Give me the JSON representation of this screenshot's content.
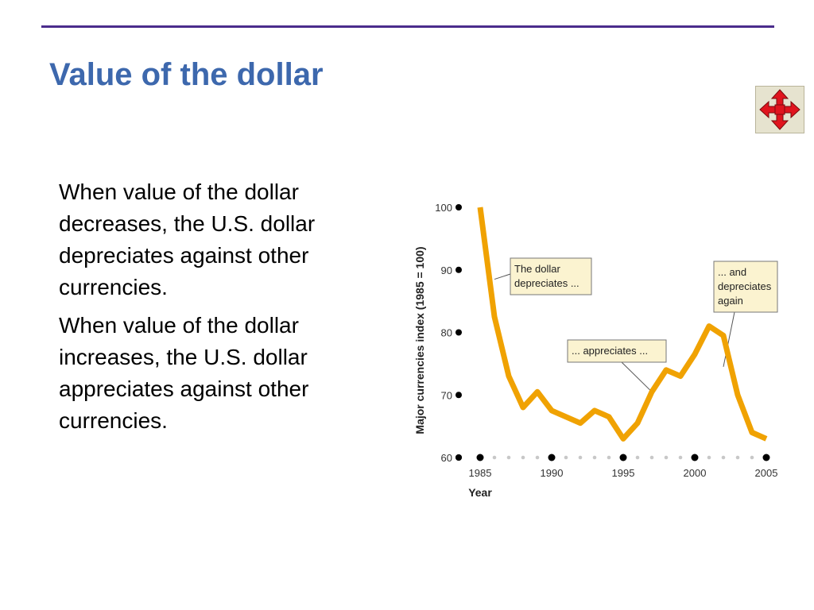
{
  "slide": {
    "title": "Value of the dollar",
    "nav_icon": "four-way-arrow-icon",
    "paragraphs": [
      "When value of the dollar decreases, the U.S. dollar depreciates against other currencies.",
      "When value of the dollar increases, the U.S. dollar appreciates against other currencies."
    ]
  },
  "colors": {
    "title": "#3d68ad",
    "rule": "#4b2c8c",
    "line": "#f0a202",
    "callout_fill": "#fbf3d0",
    "nav_arrow": "#e0141e"
  },
  "chart_data": {
    "type": "line",
    "xlabel": "Year",
    "ylabel": "Major currencies index (1985 = 100)",
    "xlim": [
      1985,
      2005
    ],
    "ylim": [
      60,
      100
    ],
    "x_ticks": [
      1985,
      1990,
      1995,
      2000,
      2005
    ],
    "y_ticks": [
      60,
      70,
      80,
      90,
      100
    ],
    "grid": false,
    "series": [
      {
        "x": [
          1985,
          1986,
          1987,
          1988,
          1989,
          1990,
          1991,
          1992,
          1993,
          1994,
          1995,
          1996,
          1997,
          1998,
          1999,
          2000,
          2001,
          2002,
          2003,
          2004,
          2005
        ],
        "values": [
          100,
          82.5,
          73,
          68,
          70.5,
          67.5,
          66.5,
          65.5,
          67.5,
          66.5,
          63,
          65.5,
          70.5,
          74,
          73,
          76.5,
          81,
          79.5,
          70,
          64,
          63
        ]
      }
    ],
    "annotations": [
      {
        "text": [
          "The dollar",
          "depreciates ..."
        ]
      },
      {
        "text": [
          "... appreciates ..."
        ]
      },
      {
        "text": [
          "... and",
          "depreciates",
          "again"
        ]
      }
    ]
  }
}
